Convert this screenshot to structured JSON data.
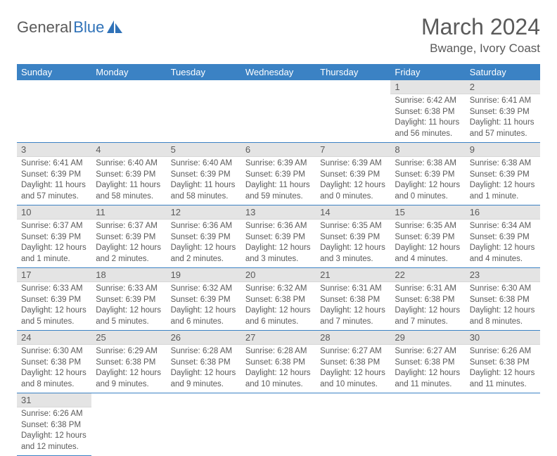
{
  "logo": {
    "part1": "General",
    "part2": "Blue"
  },
  "title": "March 2024",
  "location": "Bwange, Ivory Coast",
  "colors": {
    "header_bg": "#3b82c4",
    "header_text": "#ffffff",
    "daynum_bg": "#e4e4e4",
    "text": "#5a5a5a",
    "accent": "#2f72b8"
  },
  "weekdays": [
    "Sunday",
    "Monday",
    "Tuesday",
    "Wednesday",
    "Thursday",
    "Friday",
    "Saturday"
  ],
  "first_weekday_index": 5,
  "days": [
    {
      "n": 1,
      "sunrise": "6:42 AM",
      "sunset": "6:38 PM",
      "daylight": "11 hours and 56 minutes."
    },
    {
      "n": 2,
      "sunrise": "6:41 AM",
      "sunset": "6:39 PM",
      "daylight": "11 hours and 57 minutes."
    },
    {
      "n": 3,
      "sunrise": "6:41 AM",
      "sunset": "6:39 PM",
      "daylight": "11 hours and 57 minutes."
    },
    {
      "n": 4,
      "sunrise": "6:40 AM",
      "sunset": "6:39 PM",
      "daylight": "11 hours and 58 minutes."
    },
    {
      "n": 5,
      "sunrise": "6:40 AM",
      "sunset": "6:39 PM",
      "daylight": "11 hours and 58 minutes."
    },
    {
      "n": 6,
      "sunrise": "6:39 AM",
      "sunset": "6:39 PM",
      "daylight": "11 hours and 59 minutes."
    },
    {
      "n": 7,
      "sunrise": "6:39 AM",
      "sunset": "6:39 PM",
      "daylight": "12 hours and 0 minutes."
    },
    {
      "n": 8,
      "sunrise": "6:38 AM",
      "sunset": "6:39 PM",
      "daylight": "12 hours and 0 minutes."
    },
    {
      "n": 9,
      "sunrise": "6:38 AM",
      "sunset": "6:39 PM",
      "daylight": "12 hours and 1 minute."
    },
    {
      "n": 10,
      "sunrise": "6:37 AM",
      "sunset": "6:39 PM",
      "daylight": "12 hours and 1 minute."
    },
    {
      "n": 11,
      "sunrise": "6:37 AM",
      "sunset": "6:39 PM",
      "daylight": "12 hours and 2 minutes."
    },
    {
      "n": 12,
      "sunrise": "6:36 AM",
      "sunset": "6:39 PM",
      "daylight": "12 hours and 2 minutes."
    },
    {
      "n": 13,
      "sunrise": "6:36 AM",
      "sunset": "6:39 PM",
      "daylight": "12 hours and 3 minutes."
    },
    {
      "n": 14,
      "sunrise": "6:35 AM",
      "sunset": "6:39 PM",
      "daylight": "12 hours and 3 minutes."
    },
    {
      "n": 15,
      "sunrise": "6:35 AM",
      "sunset": "6:39 PM",
      "daylight": "12 hours and 4 minutes."
    },
    {
      "n": 16,
      "sunrise": "6:34 AM",
      "sunset": "6:39 PM",
      "daylight": "12 hours and 4 minutes."
    },
    {
      "n": 17,
      "sunrise": "6:33 AM",
      "sunset": "6:39 PM",
      "daylight": "12 hours and 5 minutes."
    },
    {
      "n": 18,
      "sunrise": "6:33 AM",
      "sunset": "6:39 PM",
      "daylight": "12 hours and 5 minutes."
    },
    {
      "n": 19,
      "sunrise": "6:32 AM",
      "sunset": "6:39 PM",
      "daylight": "12 hours and 6 minutes."
    },
    {
      "n": 20,
      "sunrise": "6:32 AM",
      "sunset": "6:38 PM",
      "daylight": "12 hours and 6 minutes."
    },
    {
      "n": 21,
      "sunrise": "6:31 AM",
      "sunset": "6:38 PM",
      "daylight": "12 hours and 7 minutes."
    },
    {
      "n": 22,
      "sunrise": "6:31 AM",
      "sunset": "6:38 PM",
      "daylight": "12 hours and 7 minutes."
    },
    {
      "n": 23,
      "sunrise": "6:30 AM",
      "sunset": "6:38 PM",
      "daylight": "12 hours and 8 minutes."
    },
    {
      "n": 24,
      "sunrise": "6:30 AM",
      "sunset": "6:38 PM",
      "daylight": "12 hours and 8 minutes."
    },
    {
      "n": 25,
      "sunrise": "6:29 AM",
      "sunset": "6:38 PM",
      "daylight": "12 hours and 9 minutes."
    },
    {
      "n": 26,
      "sunrise": "6:28 AM",
      "sunset": "6:38 PM",
      "daylight": "12 hours and 9 minutes."
    },
    {
      "n": 27,
      "sunrise": "6:28 AM",
      "sunset": "6:38 PM",
      "daylight": "12 hours and 10 minutes."
    },
    {
      "n": 28,
      "sunrise": "6:27 AM",
      "sunset": "6:38 PM",
      "daylight": "12 hours and 10 minutes."
    },
    {
      "n": 29,
      "sunrise": "6:27 AM",
      "sunset": "6:38 PM",
      "daylight": "12 hours and 11 minutes."
    },
    {
      "n": 30,
      "sunrise": "6:26 AM",
      "sunset": "6:38 PM",
      "daylight": "12 hours and 11 minutes."
    },
    {
      "n": 31,
      "sunrise": "6:26 AM",
      "sunset": "6:38 PM",
      "daylight": "12 hours and 12 minutes."
    }
  ],
  "labels": {
    "sunrise": "Sunrise:",
    "sunset": "Sunset:",
    "daylight": "Daylight:"
  }
}
